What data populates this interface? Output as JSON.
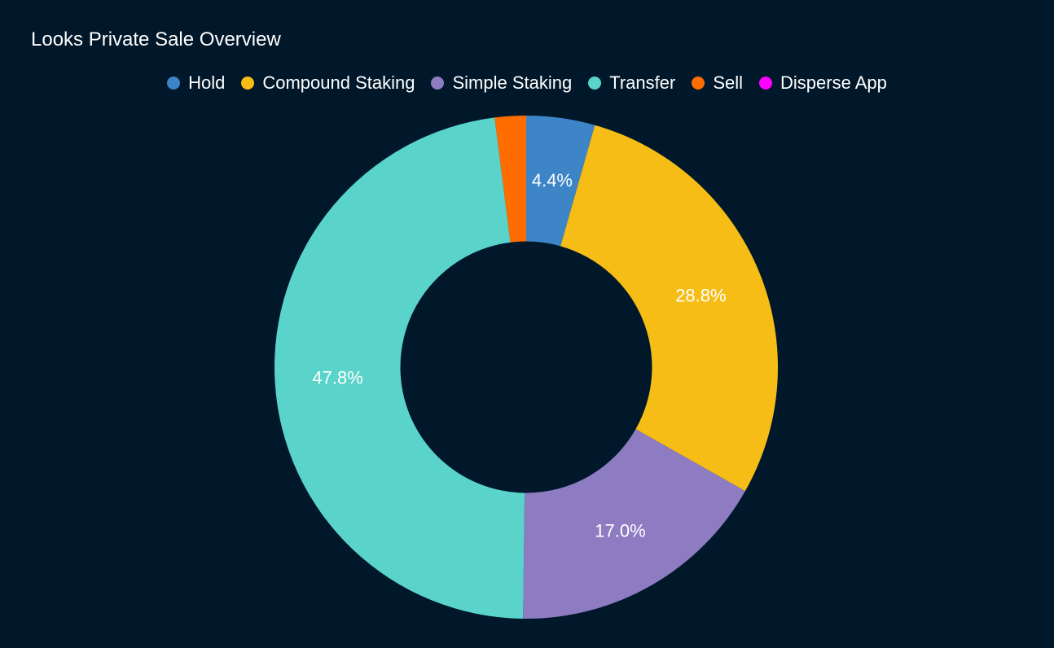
{
  "chart_data": {
    "type": "pie",
    "title": "Looks Private Sale Overview",
    "legend_position": "top-center",
    "hole": 0.5,
    "series": [
      {
        "name": "Hold",
        "value": 4.4,
        "label": "4.4%",
        "color": "#3d85c6"
      },
      {
        "name": "Compound Staking",
        "value": 28.8,
        "label": "28.8%",
        "color": "#f6bd16"
      },
      {
        "name": "Simple Staking",
        "value": 17.0,
        "label": "17.0%",
        "color": "#8e7cc3"
      },
      {
        "name": "Transfer",
        "value": 47.8,
        "label": "47.8%",
        "color": "#5ad3cb"
      },
      {
        "name": "Sell",
        "value": 2.0,
        "label": "",
        "color": "#ff6d01"
      },
      {
        "name": "Disperse App",
        "value": 0.0,
        "label": "",
        "color": "#ff00ff"
      }
    ]
  }
}
